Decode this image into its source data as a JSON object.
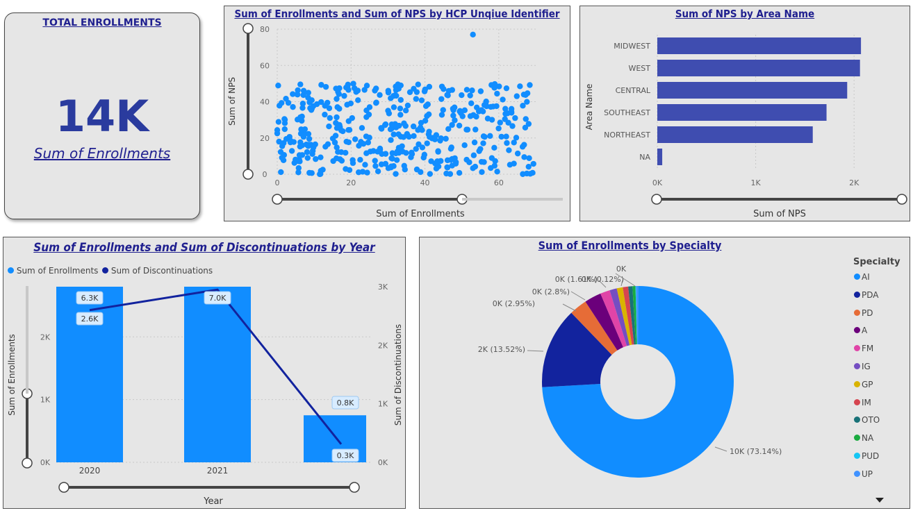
{
  "card": {
    "title": "TOTAL ENROLLMENTS",
    "value": "14K",
    "caption": "Sum of Enrollments"
  },
  "colors": {
    "primary": "#118dff",
    "navy": "#12239e",
    "bar_purple": "#3f4db0",
    "title": "#1f1f8f"
  },
  "chart_data": [
    {
      "id": "scatter",
      "type": "scatter",
      "title": "Sum of Enrollments and Sum of NPS by HCP Unqiue Identifier",
      "xlabel": "Sum of Enrollments",
      "ylabel": "Sum of NPS",
      "xlim": [
        0,
        70
      ],
      "ylim": [
        0,
        80
      ],
      "xticks": [
        "0",
        "20",
        "40",
        "60"
      ],
      "yticks": [
        "0",
        "20",
        "40",
        "60",
        "80"
      ],
      "outlier": {
        "x": 53,
        "y": 77
      }
    },
    {
      "id": "area-bar",
      "type": "bar",
      "orientation": "horizontal",
      "title": "Sum of NPS by Area Name",
      "xlabel": "Sum of NPS",
      "ylabel": "Area Name",
      "categories": [
        "MIDWEST",
        "WEST",
        "CENTRAL",
        "SOUTHEAST",
        "NORTHEAST",
        "NA"
      ],
      "values": [
        2070,
        2060,
        1930,
        1720,
        1580,
        50
      ],
      "xlim": [
        0,
        2500
      ],
      "xticks": [
        "0K",
        "1K",
        "2K"
      ]
    },
    {
      "id": "combo",
      "type": "bar",
      "title": "Sum of Enrollments and Sum of Discontinuations by Year",
      "xlabel": "Year",
      "ylabel": "Sum of Enrollments",
      "y2label": "Sum of Discontinuations",
      "categories": [
        "2020",
        "2021",
        ""
      ],
      "series": [
        {
          "name": "Sum of Enrollments",
          "values": [
            6300,
            7000,
            750
          ],
          "labels": [
            "6.3K",
            "7.0K",
            "0.8K"
          ]
        },
        {
          "name": "Sum of Discontinuations",
          "values": [
            2600,
            2950,
            310
          ],
          "labels": [
            "2.6K",
            "",
            "0.3K"
          ]
        }
      ],
      "ylim": [
        0,
        2800
      ],
      "yticks": [
        "0K",
        "1K",
        "2K"
      ],
      "y2ticks": [
        "0K",
        "1K",
        "2K",
        "3K"
      ]
    },
    {
      "id": "donut",
      "type": "pie",
      "title": "Sum of Enrollments by Specialty",
      "legend_title": "Specialty",
      "categories": [
        "AI",
        "PDA",
        "PD",
        "A",
        "FM",
        "IG",
        "GP",
        "IM",
        "OTO",
        "NA",
        "PUD",
        "UP"
      ],
      "values": [
        73.14,
        13.52,
        2.95,
        2.8,
        1.61,
        1.2,
        1.0,
        0.9,
        0.7,
        0.5,
        0.12,
        0.3
      ],
      "colors": [
        "#118dff",
        "#12239e",
        "#e66c37",
        "#6b007b",
        "#e044a7",
        "#744ec2",
        "#d9b300",
        "#d64550",
        "#197278",
        "#1aab40",
        "#15c6f4",
        "#4092ff"
      ],
      "labels": [
        {
          "text": "10K (73.14%)"
        },
        {
          "text": "2K (13.52%)"
        },
        {
          "text": "0K (2.95%)"
        },
        {
          "text": "0K (2.8%)"
        },
        {
          "text": "0K (1.61%)"
        },
        {
          "text": "0K (0.12%)"
        },
        {
          "text": "0K"
        }
      ]
    }
  ]
}
